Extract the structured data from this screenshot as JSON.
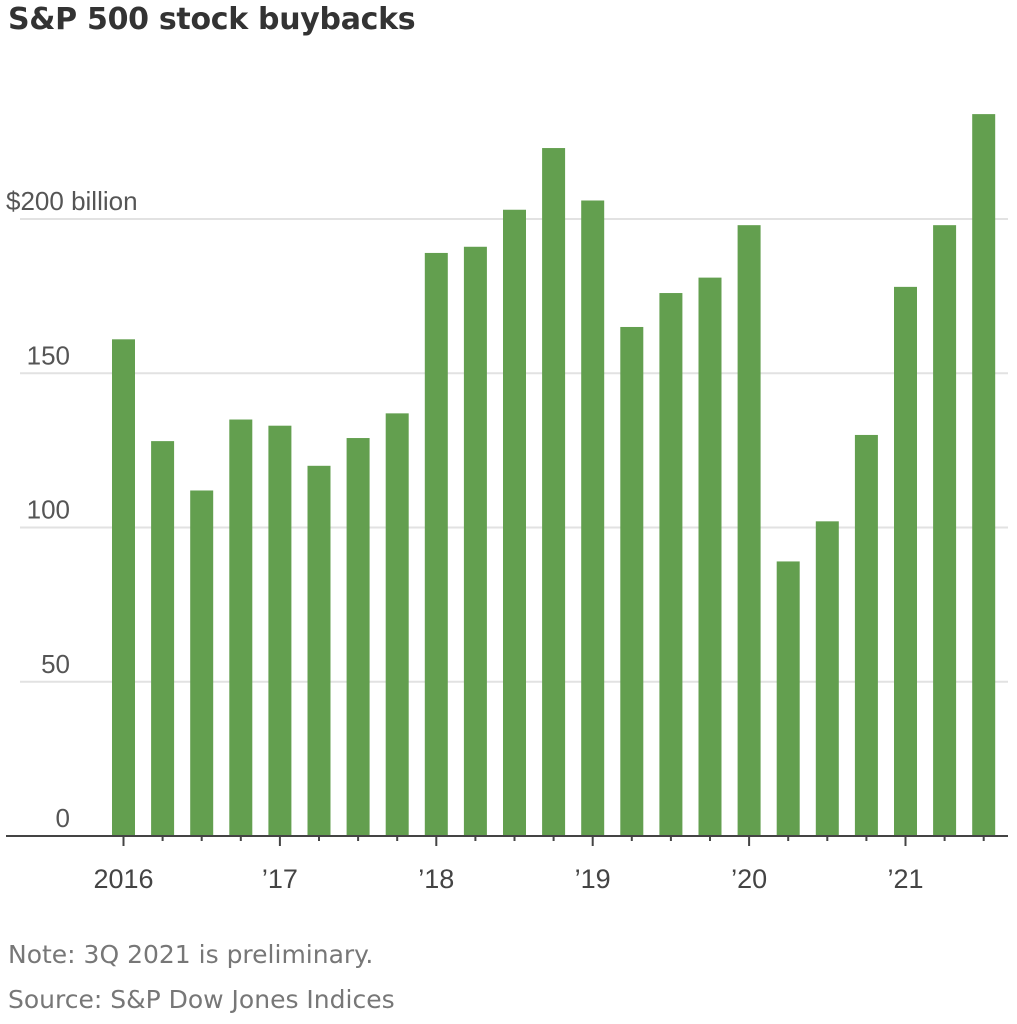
{
  "chart_data": {
    "type": "bar",
    "title": "S&P 500 stock buybacks",
    "xlabel": "",
    "ylabel": "",
    "unit_label": "$200 billion",
    "ylim": [
      0,
      240
    ],
    "grid": true,
    "legend": "none",
    "bar_color": "#639f4f",
    "categories": [
      "1Q 2016",
      "2Q 2016",
      "3Q 2016",
      "4Q 2016",
      "1Q 2017",
      "2Q 2017",
      "3Q 2017",
      "4Q 2017",
      "1Q 2018",
      "2Q 2018",
      "3Q 2018",
      "4Q 2018",
      "1Q 2019",
      "2Q 2019",
      "3Q 2019",
      "4Q 2019",
      "1Q 2020",
      "2Q 2020",
      "3Q 2020",
      "4Q 2020",
      "1Q 2021",
      "2Q 2021",
      "3Q 2021"
    ],
    "values": [
      161,
      128,
      112,
      135,
      133,
      120,
      129,
      137,
      189,
      191,
      203,
      223,
      206,
      165,
      176,
      181,
      198,
      89,
      102,
      130,
      178,
      198,
      234
    ],
    "yticks": [
      {
        "value": 0,
        "label": "0"
      },
      {
        "value": 50,
        "label": "50"
      },
      {
        "value": 100,
        "label": "100"
      },
      {
        "value": 150,
        "label": "150"
      },
      {
        "value": 200,
        "label": "$200 billion"
      }
    ],
    "xticks": [
      {
        "index": 0,
        "label": "2016"
      },
      {
        "index": 4,
        "label": "’17"
      },
      {
        "index": 8,
        "label": "’18"
      },
      {
        "index": 12,
        "label": "’19"
      },
      {
        "index": 16,
        "label": "’20"
      },
      {
        "index": 20,
        "label": "’21"
      }
    ]
  },
  "footer": {
    "note": "Note: 3Q 2021 is preliminary.",
    "source": "Source: S&P Dow Jones Indices"
  }
}
